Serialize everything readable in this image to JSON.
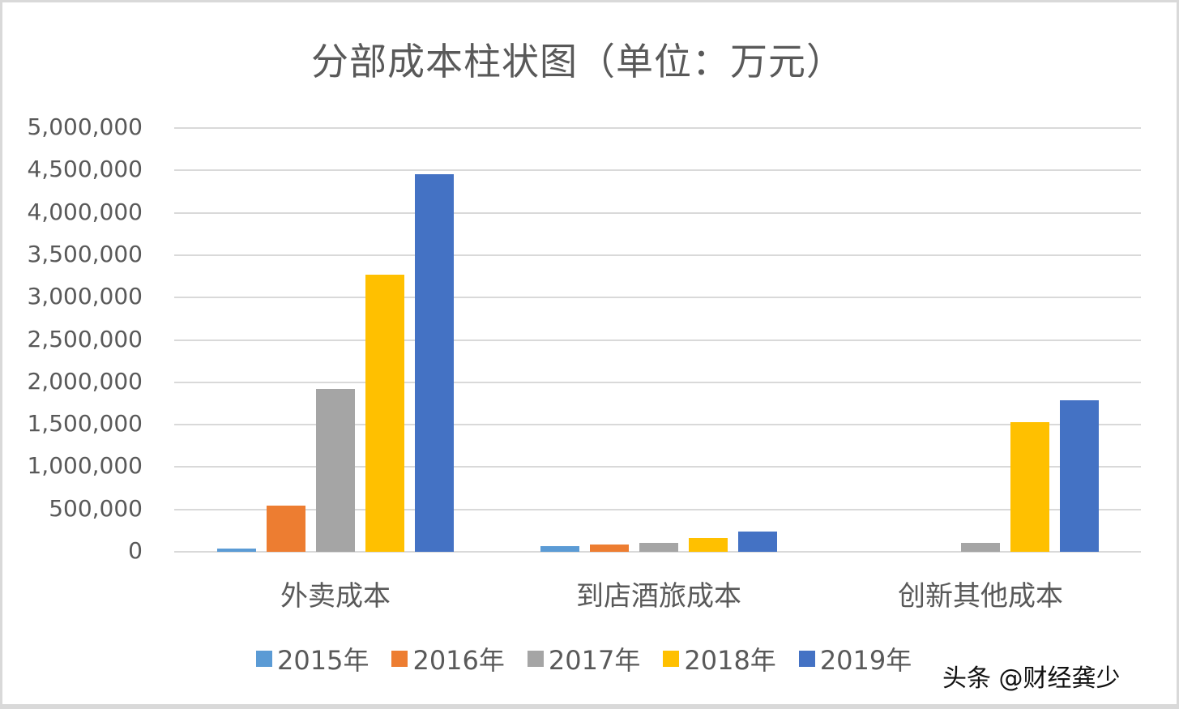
{
  "chart_data": {
    "type": "bar",
    "title": "分部成本柱状图（单位：万元）",
    "xlabel": "",
    "ylabel": "",
    "ylim": [
      0,
      5000000
    ],
    "yticks": [
      "5,000,000",
      "4,500,000",
      "4,000,000",
      "3,500,000",
      "3,000,000",
      "2,500,000",
      "2,000,000",
      "1,500,000",
      "1,000,000",
      "500,000",
      "0"
    ],
    "grid": true,
    "legend_position": "bottom",
    "categories": [
      "外卖成本",
      "到店酒旅成本",
      "创新其他成本"
    ],
    "series": [
      {
        "name": "2015年",
        "color": "#5b9bd5",
        "values": [
          38000,
          67000,
          0
        ]
      },
      {
        "name": "2016年",
        "color": "#ed7d31",
        "values": [
          545000,
          86000,
          0
        ]
      },
      {
        "name": "2017年",
        "color": "#a5a5a5",
        "values": [
          1922000,
          105000,
          105000
        ]
      },
      {
        "name": "2018年",
        "color": "#ffc000",
        "values": [
          3270000,
          163000,
          1530000
        ]
      },
      {
        "name": "2019年",
        "color": "#4472c4",
        "values": [
          4455000,
          239000,
          1788000
        ]
      }
    ]
  },
  "watermark": "头条 @财经龚少"
}
